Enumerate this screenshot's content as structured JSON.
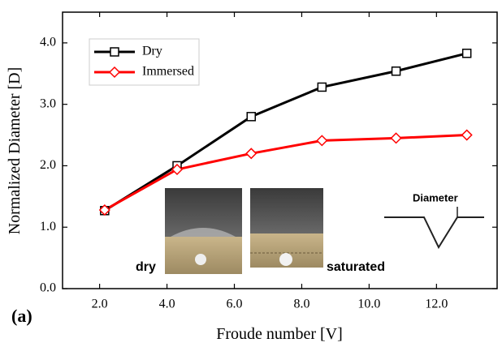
{
  "chart_data": {
    "type": "line",
    "x_label": "Froude number [V]",
    "y_label": "Normalized Diameter [D]",
    "x": [
      2.15,
      4.3,
      6.5,
      8.6,
      10.8,
      12.9
    ],
    "series": [
      {
        "name": "Dry",
        "color": "#000000",
        "marker": "square",
        "values": [
          1.27,
          2.0,
          2.8,
          3.28,
          3.54,
          3.83
        ]
      },
      {
        "name": "Immersed",
        "color": "#ff0000",
        "marker": "diamond",
        "values": [
          1.28,
          1.94,
          2.2,
          2.41,
          2.45,
          2.5
        ]
      }
    ],
    "xlim": [
      0.9,
      13.8
    ],
    "ylim": [
      0,
      4.5
    ],
    "xticks": [
      {
        "value": 2,
        "label": "2.0"
      },
      {
        "value": 4,
        "label": "4.0"
      },
      {
        "value": 6,
        "label": "6.0"
      },
      {
        "value": 8,
        "label": "8.0"
      },
      {
        "value": 10,
        "label": "10.0"
      },
      {
        "value": 12,
        "label": "12.0"
      }
    ],
    "yticks": [
      {
        "value": 0,
        "label": "0.0"
      },
      {
        "value": 1,
        "label": "1.0"
      },
      {
        "value": 2,
        "label": "2.0"
      },
      {
        "value": 3,
        "label": "3.0"
      },
      {
        "value": 4,
        "label": "4.0"
      }
    ],
    "legend": "upper left",
    "annotations": [
      "(a)",
      "dry",
      "saturated",
      "Diameter"
    ]
  }
}
